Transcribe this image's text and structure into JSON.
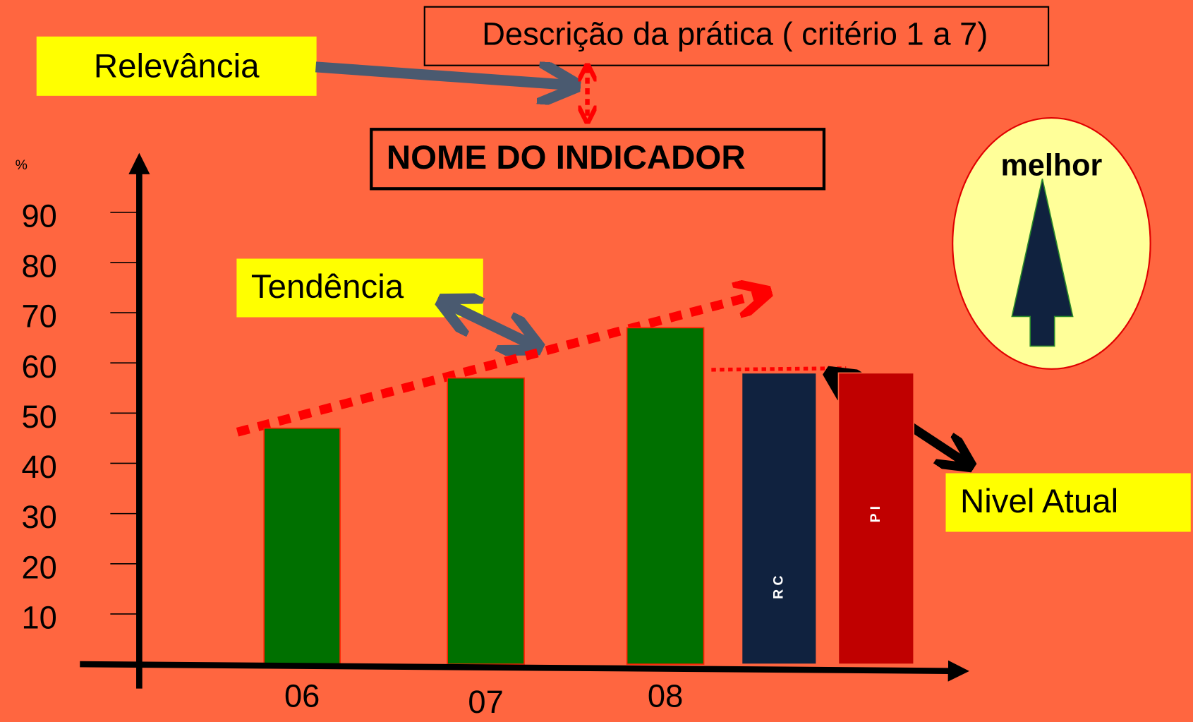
{
  "chart_data": {
    "type": "bar",
    "title": "NOME DO INDICADOR",
    "subtitle": "Descrição da prática ( critério 1 a 7)",
    "y_label": "%",
    "categories": [
      "06",
      "07",
      "08",
      "R C",
      "P I"
    ],
    "values": [
      47,
      57,
      67,
      58,
      58
    ],
    "colors": [
      "#007000",
      "#007000",
      "#007000",
      "#10223f",
      "#c00000"
    ],
    "ylim": [
      0,
      100
    ],
    "yticks": [
      10,
      20,
      30,
      40,
      50,
      60,
      70,
      80,
      90
    ],
    "annotations": {
      "relevance": "Relevância",
      "trend": "Tendência",
      "current": "Nivel Atual",
      "better": "melhor"
    }
  }
}
